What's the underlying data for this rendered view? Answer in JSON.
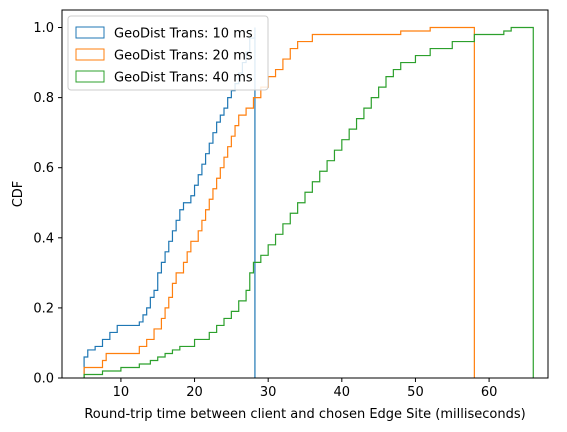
{
  "chart_data": {
    "type": "line",
    "title": "",
    "xlabel": "Round-trip time between client and chosen Edge Site (milliseconds)",
    "ylabel": "CDF",
    "xlim": [
      2.0,
      68.0
    ],
    "ylim": [
      0.0,
      1.05
    ],
    "xticks": [
      10,
      20,
      30,
      40,
      50,
      60
    ],
    "yticks": [
      0.0,
      0.2,
      0.4,
      0.6,
      0.8,
      1.0
    ],
    "xtick_labels": [
      "10",
      "20",
      "30",
      "40",
      "50",
      "60"
    ],
    "ytick_labels": [
      "0.0",
      "0.2",
      "0.4",
      "0.6",
      "0.8",
      "1.0"
    ],
    "grid": false,
    "legend_position": "upper-left",
    "series": [
      {
        "name": "GeoDist Trans: 10 ms",
        "color": "#1f77b4",
        "points": [
          [
            5.0,
            0.0
          ],
          [
            5.0,
            0.06
          ],
          [
            5.5,
            0.06
          ],
          [
            5.5,
            0.08
          ],
          [
            6.5,
            0.08
          ],
          [
            6.5,
            0.09
          ],
          [
            7.5,
            0.09
          ],
          [
            7.5,
            0.11
          ],
          [
            8.5,
            0.11
          ],
          [
            8.5,
            0.13
          ],
          [
            9.5,
            0.13
          ],
          [
            9.5,
            0.15
          ],
          [
            12.5,
            0.15
          ],
          [
            12.5,
            0.16
          ],
          [
            13.0,
            0.16
          ],
          [
            13.0,
            0.18
          ],
          [
            13.5,
            0.18
          ],
          [
            13.5,
            0.2
          ],
          [
            14.0,
            0.2
          ],
          [
            14.0,
            0.23
          ],
          [
            14.5,
            0.23
          ],
          [
            14.5,
            0.25
          ],
          [
            15.0,
            0.25
          ],
          [
            15.0,
            0.3
          ],
          [
            15.5,
            0.3
          ],
          [
            15.5,
            0.33
          ],
          [
            16.0,
            0.33
          ],
          [
            16.0,
            0.36
          ],
          [
            16.5,
            0.36
          ],
          [
            16.5,
            0.39
          ],
          [
            17.0,
            0.39
          ],
          [
            17.0,
            0.42
          ],
          [
            17.5,
            0.42
          ],
          [
            17.5,
            0.45
          ],
          [
            18.0,
            0.45
          ],
          [
            18.0,
            0.48
          ],
          [
            18.5,
            0.48
          ],
          [
            18.5,
            0.5
          ],
          [
            19.5,
            0.5
          ],
          [
            19.5,
            0.52
          ],
          [
            20.0,
            0.52
          ],
          [
            20.0,
            0.55
          ],
          [
            20.5,
            0.55
          ],
          [
            20.5,
            0.58
          ],
          [
            21.0,
            0.58
          ],
          [
            21.0,
            0.61
          ],
          [
            21.5,
            0.61
          ],
          [
            21.5,
            0.64
          ],
          [
            22.0,
            0.64
          ],
          [
            22.0,
            0.67
          ],
          [
            22.5,
            0.67
          ],
          [
            22.5,
            0.7
          ],
          [
            23.0,
            0.7
          ],
          [
            23.0,
            0.73
          ],
          [
            23.5,
            0.73
          ],
          [
            23.5,
            0.75
          ],
          [
            24.0,
            0.75
          ],
          [
            24.0,
            0.77
          ],
          [
            24.5,
            0.77
          ],
          [
            24.5,
            0.8
          ],
          [
            25.0,
            0.8
          ],
          [
            25.0,
            0.82
          ],
          [
            25.5,
            0.82
          ],
          [
            25.5,
            0.84
          ],
          [
            26.0,
            0.84
          ],
          [
            26.0,
            0.87
          ],
          [
            26.5,
            0.87
          ],
          [
            26.5,
            0.9
          ],
          [
            27.0,
            0.9
          ],
          [
            27.0,
            0.93
          ],
          [
            27.5,
            0.93
          ],
          [
            27.5,
            0.97
          ],
          [
            28.2,
            0.97
          ],
          [
            28.2,
            1.0
          ],
          [
            28.2,
            0.0
          ]
        ]
      },
      {
        "name": "GeoDist Trans: 20 ms",
        "color": "#ff7f0e",
        "points": [
          [
            5.0,
            0.0
          ],
          [
            5.0,
            0.03
          ],
          [
            7.5,
            0.03
          ],
          [
            7.5,
            0.05
          ],
          [
            8.0,
            0.05
          ],
          [
            8.0,
            0.07
          ],
          [
            12.5,
            0.07
          ],
          [
            12.5,
            0.09
          ],
          [
            13.5,
            0.09
          ],
          [
            13.5,
            0.11
          ],
          [
            14.5,
            0.11
          ],
          [
            14.5,
            0.14
          ],
          [
            15.5,
            0.14
          ],
          [
            15.5,
            0.17
          ],
          [
            16.0,
            0.17
          ],
          [
            16.0,
            0.2
          ],
          [
            16.5,
            0.2
          ],
          [
            16.5,
            0.23
          ],
          [
            17.0,
            0.23
          ],
          [
            17.0,
            0.27
          ],
          [
            17.5,
            0.27
          ],
          [
            17.5,
            0.3
          ],
          [
            18.5,
            0.3
          ],
          [
            18.5,
            0.33
          ],
          [
            19.0,
            0.33
          ],
          [
            19.0,
            0.36
          ],
          [
            19.5,
            0.36
          ],
          [
            19.5,
            0.39
          ],
          [
            20.5,
            0.39
          ],
          [
            20.5,
            0.42
          ],
          [
            21.0,
            0.42
          ],
          [
            21.0,
            0.45
          ],
          [
            21.5,
            0.45
          ],
          [
            21.5,
            0.48
          ],
          [
            22.0,
            0.48
          ],
          [
            22.0,
            0.51
          ],
          [
            22.5,
            0.51
          ],
          [
            22.5,
            0.54
          ],
          [
            23.0,
            0.54
          ],
          [
            23.0,
            0.57
          ],
          [
            23.5,
            0.57
          ],
          [
            23.5,
            0.6
          ],
          [
            24.0,
            0.6
          ],
          [
            24.0,
            0.63
          ],
          [
            24.5,
            0.63
          ],
          [
            24.5,
            0.66
          ],
          [
            25.0,
            0.66
          ],
          [
            25.0,
            0.69
          ],
          [
            25.5,
            0.69
          ],
          [
            25.5,
            0.72
          ],
          [
            26.0,
            0.72
          ],
          [
            26.0,
            0.75
          ],
          [
            27.0,
            0.75
          ],
          [
            27.0,
            0.77
          ],
          [
            28.0,
            0.77
          ],
          [
            28.0,
            0.8
          ],
          [
            29.0,
            0.8
          ],
          [
            29.0,
            0.83
          ],
          [
            30.0,
            0.83
          ],
          [
            30.0,
            0.86
          ],
          [
            31.0,
            0.86
          ],
          [
            31.0,
            0.88
          ],
          [
            32.0,
            0.88
          ],
          [
            32.0,
            0.91
          ],
          [
            33.0,
            0.91
          ],
          [
            33.0,
            0.94
          ],
          [
            34.0,
            0.94
          ],
          [
            34.0,
            0.96
          ],
          [
            36.0,
            0.96
          ],
          [
            36.0,
            0.98
          ],
          [
            48.0,
            0.98
          ],
          [
            48.0,
            0.99
          ],
          [
            52.0,
            0.99
          ],
          [
            52.0,
            1.0
          ],
          [
            58.0,
            1.0
          ],
          [
            58.0,
            0.0
          ]
        ]
      },
      {
        "name": "GeoDist Trans: 40 ms",
        "color": "#2ca02c",
        "points": [
          [
            5.0,
            0.0
          ],
          [
            5.0,
            0.01
          ],
          [
            7.5,
            0.01
          ],
          [
            7.5,
            0.02
          ],
          [
            10.0,
            0.02
          ],
          [
            10.0,
            0.03
          ],
          [
            12.5,
            0.03
          ],
          [
            12.5,
            0.04
          ],
          [
            14.0,
            0.04
          ],
          [
            14.0,
            0.05
          ],
          [
            15.0,
            0.05
          ],
          [
            15.0,
            0.06
          ],
          [
            16.0,
            0.06
          ],
          [
            16.0,
            0.07
          ],
          [
            17.0,
            0.07
          ],
          [
            17.0,
            0.08
          ],
          [
            18.0,
            0.08
          ],
          [
            18.0,
            0.09
          ],
          [
            20.0,
            0.09
          ],
          [
            20.0,
            0.11
          ],
          [
            22.0,
            0.11
          ],
          [
            22.0,
            0.13
          ],
          [
            23.0,
            0.13
          ],
          [
            23.0,
            0.15
          ],
          [
            24.0,
            0.15
          ],
          [
            24.0,
            0.17
          ],
          [
            25.0,
            0.17
          ],
          [
            25.0,
            0.19
          ],
          [
            26.0,
            0.19
          ],
          [
            26.0,
            0.22
          ],
          [
            27.0,
            0.22
          ],
          [
            27.0,
            0.25
          ],
          [
            27.5,
            0.25
          ],
          [
            27.5,
            0.3
          ],
          [
            28.0,
            0.3
          ],
          [
            28.0,
            0.33
          ],
          [
            29.0,
            0.33
          ],
          [
            29.0,
            0.35
          ],
          [
            30.0,
            0.35
          ],
          [
            30.0,
            0.38
          ],
          [
            31.0,
            0.38
          ],
          [
            31.0,
            0.41
          ],
          [
            32.0,
            0.41
          ],
          [
            32.0,
            0.44
          ],
          [
            33.0,
            0.44
          ],
          [
            33.0,
            0.47
          ],
          [
            34.0,
            0.47
          ],
          [
            34.0,
            0.5
          ],
          [
            35.0,
            0.5
          ],
          [
            35.0,
            0.53
          ],
          [
            36.0,
            0.53
          ],
          [
            36.0,
            0.56
          ],
          [
            37.0,
            0.56
          ],
          [
            37.0,
            0.59
          ],
          [
            38.0,
            0.59
          ],
          [
            38.0,
            0.62
          ],
          [
            39.0,
            0.62
          ],
          [
            39.0,
            0.65
          ],
          [
            40.0,
            0.65
          ],
          [
            40.0,
            0.68
          ],
          [
            41.0,
            0.68
          ],
          [
            41.0,
            0.71
          ],
          [
            42.0,
            0.71
          ],
          [
            42.0,
            0.74
          ],
          [
            43.0,
            0.74
          ],
          [
            43.0,
            0.77
          ],
          [
            44.0,
            0.77
          ],
          [
            44.0,
            0.8
          ],
          [
            45.0,
            0.8
          ],
          [
            45.0,
            0.83
          ],
          [
            46.0,
            0.83
          ],
          [
            46.0,
            0.86
          ],
          [
            47.0,
            0.86
          ],
          [
            47.0,
            0.88
          ],
          [
            48.0,
            0.88
          ],
          [
            48.0,
            0.9
          ],
          [
            50.0,
            0.9
          ],
          [
            50.0,
            0.92
          ],
          [
            52.0,
            0.92
          ],
          [
            52.0,
            0.94
          ],
          [
            55.0,
            0.94
          ],
          [
            55.0,
            0.96
          ],
          [
            58.0,
            0.96
          ],
          [
            58.0,
            0.98
          ],
          [
            62.0,
            0.98
          ],
          [
            62.0,
            0.99
          ],
          [
            63.0,
            0.99
          ],
          [
            63.0,
            1.0
          ],
          [
            66.0,
            1.0
          ],
          [
            66.0,
            0.0
          ]
        ]
      }
    ]
  }
}
